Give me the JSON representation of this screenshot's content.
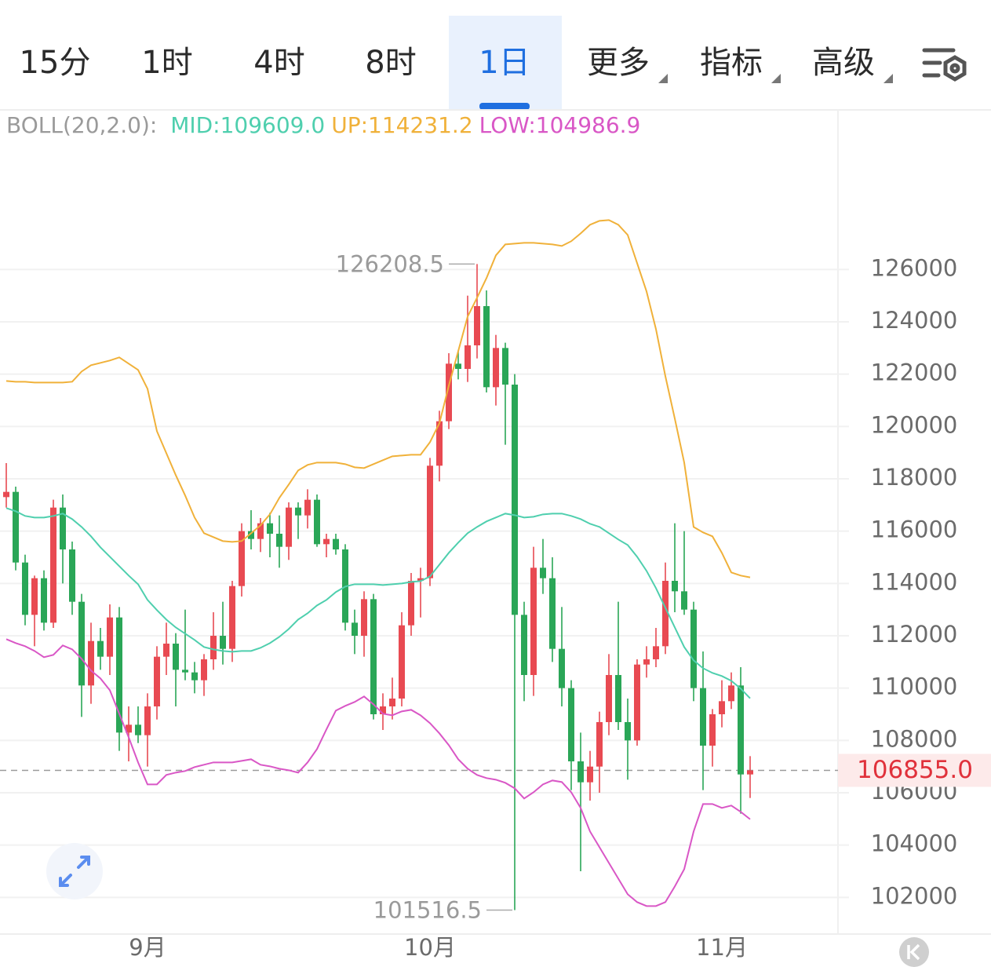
{
  "tabs": [
    {
      "label": "15分"
    },
    {
      "label": "1时"
    },
    {
      "label": "4时"
    },
    {
      "label": "8时"
    },
    {
      "label": "1日"
    },
    {
      "label": "更多",
      "dropdown": true
    },
    {
      "label": "指标",
      "dropdown": true
    },
    {
      "label": "高级",
      "dropdown": true
    }
  ],
  "selected_tab": 4,
  "chart_data": {
    "type": "candlestick",
    "indicator_label": "BOLL(20,2.0):",
    "categories": [
      null,
      null,
      null,
      null,
      null,
      null,
      null,
      null,
      null,
      null,
      null,
      null,
      null,
      null,
      null,
      "9月",
      null,
      null,
      null,
      null,
      null,
      null,
      null,
      null,
      null,
      null,
      null,
      null,
      null,
      null,
      null,
      null,
      null,
      null,
      null,
      null,
      null,
      null,
      null,
      null,
      null,
      null,
      null,
      null,
      null,
      "10月",
      null,
      null,
      null,
      null,
      null,
      null,
      null,
      null,
      null,
      null,
      null,
      null,
      null,
      null,
      null,
      null,
      null,
      null,
      null,
      null,
      null,
      null,
      null,
      null,
      null,
      null,
      null,
      null,
      null,
      null,
      "11月",
      null,
      null,
      null
    ],
    "open": [
      117300,
      117500,
      114800,
      112800,
      114200,
      112500,
      116900,
      115300,
      113300,
      110100,
      111800,
      111200,
      112700,
      108300,
      108600,
      108200,
      109300,
      111200,
      111700,
      110700,
      110600,
      110300,
      111100,
      112000,
      111500,
      113900,
      116000,
      115700,
      116300,
      115900,
      115400,
      116900,
      116600,
      117200,
      115500,
      115700,
      115300,
      112500,
      112000,
      113400,
      109000,
      109300,
      109600,
      112400,
      114100,
      114200,
      118500,
      120200,
      122400,
      122200,
      123100,
      124600,
      121500,
      123000,
      121600,
      112800,
      110500,
      114600,
      114200,
      111500,
      110000,
      107200,
      106400,
      107000,
      108700,
      110500,
      108700,
      108000,
      110900,
      111100,
      111600,
      114100,
      113700,
      113000,
      110000,
      107800,
      109000,
      109500,
      110100,
      106700
    ],
    "high": [
      118600,
      117700,
      115100,
      114300,
      114500,
      117200,
      117400,
      115600,
      113600,
      112500,
      112300,
      113200,
      113100,
      109300,
      109300,
      109800,
      111600,
      112500,
      112100,
      113000,
      111000,
      111300,
      112900,
      113300,
      114100,
      116300,
      116800,
      116500,
      116700,
      116600,
      117100,
      117100,
      117600,
      117400,
      115900,
      115900,
      115500,
      113000,
      113700,
      113600,
      109800,
      110400,
      112900,
      114400,
      114600,
      118800,
      120600,
      122800,
      122900,
      125000,
      126208.5,
      125200,
      123500,
      123200,
      122000,
      113300,
      115400,
      115700,
      115000,
      113100,
      110300,
      108300,
      107600,
      109100,
      111300,
      113300,
      109600,
      111100,
      111600,
      112300,
      114800,
      116300,
      116000,
      113300,
      111400,
      109200,
      110300,
      110600,
      110800,
      107400
    ],
    "low": [
      116900,
      114500,
      112400,
      111600,
      112200,
      112300,
      114000,
      112800,
      108900,
      109400,
      110700,
      110500,
      107600,
      107200,
      107900,
      107000,
      108800,
      110500,
      109300,
      110300,
      109800,
      109700,
      110700,
      110900,
      111000,
      113500,
      115300,
      115200,
      115000,
      114600,
      114900,
      115700,
      116100,
      115400,
      115000,
      115100,
      112200,
      111300,
      111200,
      108800,
      108400,
      108800,
      109300,
      112000,
      112700,
      113900,
      117900,
      119900,
      121800,
      121700,
      122600,
      121300,
      120800,
      119300,
      101516.5,
      109500,
      109700,
      113600,
      111000,
      109300,
      106100,
      103000,
      105700,
      106000,
      108200,
      108400,
      106500,
      107800,
      110400,
      110800,
      111300,
      112900,
      112800,
      109500,
      106100,
      107000,
      108500,
      109200,
      105200,
      105800
    ],
    "close": [
      117500,
      114800,
      112800,
      114200,
      112500,
      116900,
      115300,
      113300,
      110100,
      111800,
      111200,
      112700,
      108300,
      108600,
      108200,
      109300,
      111200,
      111700,
      110700,
      110600,
      110300,
      111100,
      112000,
      111500,
      113900,
      116000,
      115700,
      116300,
      115900,
      115400,
      116900,
      116600,
      117200,
      115500,
      115700,
      115300,
      112500,
      112000,
      113400,
      109000,
      109300,
      109600,
      112400,
      114100,
      114200,
      118500,
      120200,
      122400,
      122200,
      123100,
      124600,
      121500,
      123000,
      121600,
      112800,
      110500,
      114600,
      114200,
      111500,
      110000,
      107200,
      106400,
      107000,
      108700,
      110500,
      108700,
      108000,
      110900,
      111100,
      111600,
      114100,
      113700,
      113000,
      110000,
      107800,
      109000,
      109500,
      110100,
      106700,
      106855
    ],
    "up_color": "#e84a52",
    "down_color": "#2aa657",
    "series": [
      {
        "name": "MID:109609.0",
        "color": "#4fcfae",
        "values": [
          116880,
          116760,
          116580,
          116520,
          116520,
          116580,
          116670,
          116460,
          116160,
          115800,
          115380,
          115020,
          114660,
          114300,
          113970,
          113370,
          112980,
          112620,
          112320,
          112080,
          111840,
          111570,
          111480,
          111420,
          111390,
          111420,
          111420,
          111540,
          111720,
          111960,
          112260,
          112620,
          112860,
          113160,
          113370,
          113670,
          113880,
          113970,
          113970,
          113970,
          113940,
          113970,
          114000,
          114060,
          114090,
          114270,
          114720,
          115170,
          115560,
          115920,
          116160,
          116370,
          116520,
          116670,
          116610,
          116520,
          116550,
          116640,
          116670,
          116670,
          116580,
          116460,
          116280,
          116160,
          115920,
          115680,
          115470,
          115020,
          114480,
          113820,
          113070,
          112320,
          111570,
          111060,
          110760,
          110580,
          110460,
          110280,
          109980,
          109609.0
        ]
      },
      {
        "name": "UP:114231.2",
        "color": "#f0b13a",
        "values": [
          121740,
          121710,
          121710,
          121680,
          121680,
          121680,
          121680,
          121710,
          122100,
          122340,
          122430,
          122520,
          122640,
          122400,
          122160,
          121440,
          119820,
          118980,
          118140,
          117360,
          116520,
          115920,
          115770,
          115620,
          115590,
          115620,
          115920,
          116220,
          116640,
          117270,
          117780,
          118320,
          118530,
          118620,
          118620,
          118620,
          118560,
          118440,
          118410,
          118560,
          118710,
          118860,
          118890,
          118920,
          118920,
          119400,
          120120,
          121560,
          122880,
          124200,
          124920,
          125670,
          126540,
          126960,
          126990,
          127020,
          127020,
          126990,
          126960,
          126900,
          127080,
          127380,
          127710,
          127860,
          127890,
          127710,
          127320,
          126240,
          125160,
          123720,
          121920,
          120300,
          118620,
          116160,
          115950,
          115800,
          115170,
          114420,
          114300,
          114231.2
        ]
      },
      {
        "name": "LOW:104986.9",
        "color": "#d957c6",
        "values": [
          111870,
          111720,
          111600,
          111420,
          111180,
          111270,
          111630,
          111480,
          111120,
          110670,
          110370,
          109920,
          109020,
          108120,
          107160,
          106320,
          106320,
          106680,
          106770,
          106830,
          106980,
          107070,
          107160,
          107160,
          107160,
          107220,
          107280,
          107070,
          107010,
          106920,
          106860,
          106770,
          107160,
          107670,
          108420,
          109140,
          109320,
          109470,
          109680,
          109380,
          109020,
          108960,
          109110,
          109170,
          108960,
          108660,
          108270,
          107820,
          107280,
          106920,
          106680,
          106560,
          106500,
          106380,
          106170,
          105780,
          106020,
          106320,
          106470,
          106410,
          106020,
          105420,
          104520,
          103920,
          103320,
          102720,
          102120,
          101820,
          101670,
          101670,
          101820,
          102420,
          103080,
          104520,
          105570,
          105570,
          105420,
          105510,
          105270,
          104986.9
        ]
      }
    ],
    "high_marker": 126208.5,
    "low_marker": 101516.5,
    "last_price": {
      "value": 106855,
      "label": "106855.0"
    },
    "ylim": [
      100600,
      132100
    ],
    "yticks": [
      102000,
      104000,
      106000,
      108000,
      110000,
      112000,
      114000,
      116000,
      118000,
      120000,
      122000,
      124000,
      126000
    ],
    "grid": true
  }
}
